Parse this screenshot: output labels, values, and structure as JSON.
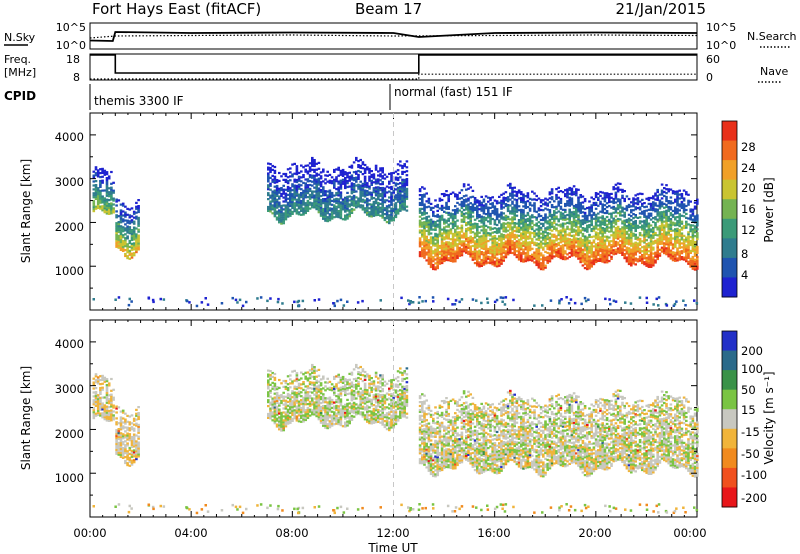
{
  "header": {
    "station": "Fort Hays East (fitACF)",
    "beam": "Beam 17",
    "date": "21/Jan/2015"
  },
  "summary_panels": {
    "noise": {
      "left_label": "N.Sky",
      "right_label": "N.Search",
      "left_ticks": [
        "10^5",
        "10^0"
      ],
      "right_ticks": [
        "10^5",
        "10^0"
      ]
    },
    "freq": {
      "left_label_line1": "Freq.",
      "left_label_line2": "[MHz]",
      "right_label": "Nave",
      "left_ticks": [
        "18",
        "8"
      ],
      "right_ticks": [
        "60",
        "0"
      ]
    },
    "cpid": {
      "label": "CPID",
      "segments": [
        {
          "text": "themis 3300 IF",
          "start_hour": 0.0
        },
        {
          "text": "normal (fast) 151 IF",
          "start_hour": 12.0
        }
      ]
    }
  },
  "power_panel": {
    "ylabel": "Slant Range [km]",
    "yticks": [
      "4000",
      "3000",
      "2000",
      "1000"
    ],
    "colorbar_label": "Power [dB]",
    "colorbar_ticks": [
      "28",
      "24",
      "20",
      "16",
      "12",
      "8",
      "4"
    ],
    "colors": [
      "#1e22d0",
      "#1f54b0",
      "#2f7c8e",
      "#3b9a78",
      "#74b352",
      "#c9c431",
      "#f0a028",
      "#f06a1e",
      "#e8301a"
    ]
  },
  "velocity_panel": {
    "ylabel": "Slant Range [km]",
    "yticks": [
      "4000",
      "3000",
      "2000",
      "1000"
    ],
    "colorbar_label": "Velocity [m s⁻¹]",
    "colorbar_ticks": [
      "200",
      "100",
      "50",
      "15",
      "-15",
      "-50",
      "-100",
      "-200"
    ],
    "colors": [
      "#2230c8",
      "#2a6a8a",
      "#3a9248",
      "#7ac443",
      "#c8c8c0",
      "#f0b43a",
      "#f08a1e",
      "#f0501e",
      "#e8161a"
    ]
  },
  "xaxis": {
    "label": "Time UT",
    "ticks": [
      "00:00",
      "04:00",
      "08:00",
      "12:00",
      "16:00",
      "20:00",
      "00:00"
    ]
  },
  "chart_data": [
    {
      "type": "line",
      "title": "Fort Hays East (fitACF)",
      "subtitle": "Beam 17",
      "series": [
        {
          "name": "N.Sky",
          "x": [
            0,
            0.9,
            1,
            4,
            8,
            12,
            13,
            16,
            20,
            24
          ],
          "values": [
            1.5,
            1.4,
            3.2,
            3.0,
            3.1,
            3.0,
            2.2,
            3.0,
            3.1,
            3.0
          ]
        },
        {
          "name": "N.Search",
          "x": [
            0,
            1,
            4,
            8,
            12,
            16,
            20,
            24
          ],
          "values": [
            2.0,
            2.4,
            2.5,
            2.6,
            2.4,
            2.5,
            2.6,
            2.5
          ]
        }
      ],
      "x_range": [
        0,
        24
      ],
      "y_range": [
        0,
        5
      ]
    },
    {
      "type": "line",
      "series": [
        {
          "name": "Freq.",
          "x": [
            0,
            1,
            1,
            13,
            13,
            24
          ],
          "values": [
            18,
            18,
            10.5,
            10.5,
            18,
            18
          ]
        },
        {
          "name": "Nave",
          "x": [
            0,
            1,
            1,
            13,
            13,
            24
          ],
          "values": [
            8,
            8,
            8,
            8,
            10,
            10
          ]
        }
      ],
      "x_range": [
        0,
        24
      ],
      "y_range": [
        8,
        18
      ]
    },
    {
      "type": "heatmap",
      "title": "Power [dB]",
      "xlabel": "Time UT",
      "ylabel": "Slant Range [km]",
      "x_range": [
        0,
        24
      ],
      "y_range": [
        0,
        4500
      ],
      "color_range": [
        0,
        30
      ],
      "scatter_regions": [
        {
          "t_start": 0.1,
          "t_end": 0.9,
          "r_low": 2150,
          "r_high": 3100,
          "peak_db": 20
        },
        {
          "t_start": 1.0,
          "t_end": 1.9,
          "r_low": 1350,
          "r_high": 2500,
          "peak_db": 24
        },
        {
          "t_start": 7.0,
          "t_end": 12.5,
          "r_low": 2150,
          "r_high": 3300,
          "peak_db": 14
        },
        {
          "t_start": 13.0,
          "t_end": 24.0,
          "r_low": 1100,
          "r_high": 2700,
          "peak_db": 30
        }
      ]
    },
    {
      "type": "heatmap",
      "title": "Velocity [m s⁻¹]",
      "xlabel": "Time UT",
      "ylabel": "Slant Range [km]",
      "x_range": [
        0,
        24
      ],
      "y_range": [
        0,
        4500
      ],
      "color_range": [
        -200,
        200
      ],
      "scatter_regions": [
        {
          "t_start": 0.1,
          "t_end": 0.9,
          "r_low": 2150,
          "r_high": 3100,
          "typical_velocity": -10
        },
        {
          "t_start": 1.0,
          "t_end": 1.9,
          "r_low": 1350,
          "r_high": 2500,
          "typical_velocity": -10
        },
        {
          "t_start": 7.0,
          "t_end": 12.5,
          "r_low": 2150,
          "r_high": 3300,
          "typical_velocity": 5
        },
        {
          "t_start": 13.0,
          "t_end": 24.0,
          "r_low": 1100,
          "r_high": 2700,
          "typical_velocity": 0
        }
      ]
    }
  ]
}
